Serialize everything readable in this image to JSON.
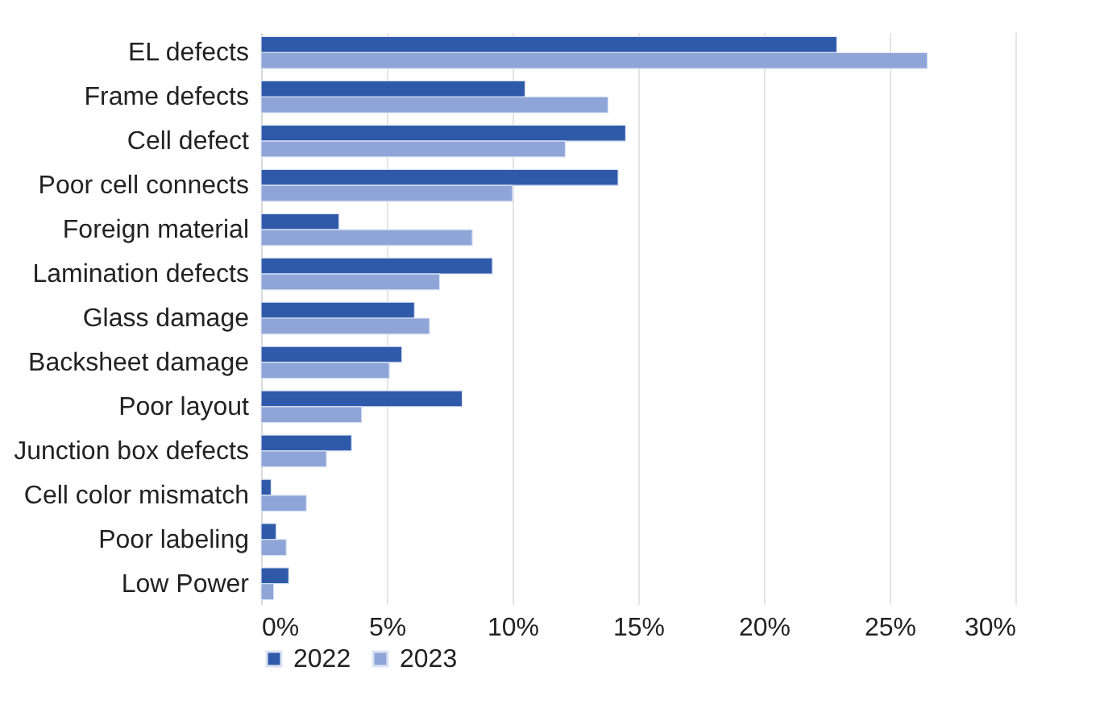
{
  "chart_data": {
    "type": "bar",
    "orientation": "horizontal",
    "categories": [
      "EL defects",
      "Frame defects",
      "Cell defect",
      "Poor cell connects",
      "Foreign material",
      "Lamination defects",
      "Glass damage",
      "Backsheet damage",
      "Poor layout",
      "Junction box defects",
      "Cell color mismatch",
      "Poor labeling",
      "Low Power"
    ],
    "series": [
      {
        "name": "2022",
        "color": "#2f5aaa",
        "values": [
          22.9,
          10.5,
          14.5,
          14.2,
          3.1,
          9.2,
          6.1,
          5.6,
          8.0,
          3.6,
          0.4,
          0.6,
          1.1
        ]
      },
      {
        "name": "2023",
        "color": "#8fa5d8",
        "values": [
          26.5,
          13.8,
          12.1,
          10.0,
          8.4,
          7.1,
          6.7,
          5.1,
          4.0,
          2.6,
          1.8,
          1.0,
          0.5
        ]
      }
    ],
    "xlim": [
      0,
      30
    ],
    "xticks": [
      {
        "value": 0,
        "label": "0%"
      },
      {
        "value": 5,
        "label": "5%"
      },
      {
        "value": 10,
        "label": "10%"
      },
      {
        "value": 15,
        "label": "15%"
      },
      {
        "value": 20,
        "label": "20%"
      },
      {
        "value": 25,
        "label": "25%"
      },
      {
        "value": 30,
        "label": "30%"
      }
    ],
    "grid": "x",
    "legend": "bottom"
  }
}
